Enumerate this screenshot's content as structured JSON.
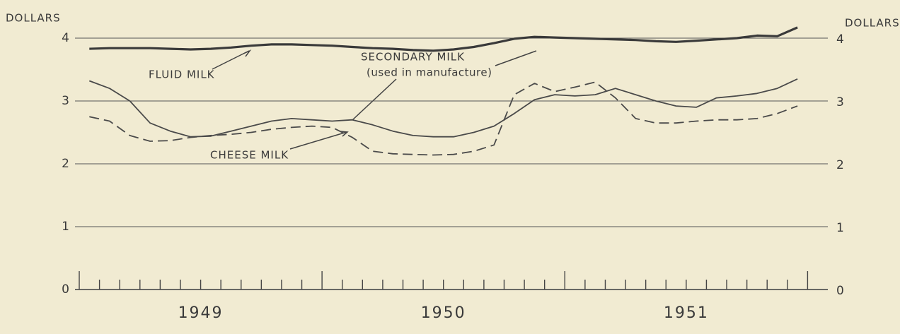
{
  "chart_data": {
    "type": "line",
    "y_label": "DOLLARS",
    "y2_label": "DOLLARS",
    "annotations": [
      "FLUID MILK",
      "SECONDARY MILK",
      "(used in manufacture)",
      "CHEESE MILK"
    ],
    "x": [
      0,
      1,
      2,
      3,
      4,
      5,
      6,
      7,
      8,
      9,
      10,
      11,
      12,
      13,
      14,
      15,
      16,
      17,
      18,
      19,
      20,
      21,
      22,
      23,
      24,
      25,
      26,
      27,
      28,
      29,
      30,
      31,
      32,
      33,
      34,
      35
    ],
    "xlim": [
      -0.5,
      36.5
    ],
    "xticks": [
      {
        "value": 5.5,
        "label": "1949"
      },
      {
        "value": 17.5,
        "label": "1950"
      },
      {
        "value": 29.5,
        "label": "1951"
      }
    ],
    "minor_xticks": [
      -0.5,
      0.5,
      1.5,
      2.5,
      3.5,
      4.5,
      5.5,
      6.5,
      7.5,
      8.5,
      9.5,
      10.5,
      11.5,
      12.5,
      13.5,
      14.5,
      15.5,
      16.5,
      17.5,
      18.5,
      19.5,
      20.5,
      21.5,
      22.5,
      23.5,
      24.5,
      25.5,
      26.5,
      27.5,
      28.5,
      29.5,
      30.5,
      31.5,
      32.5,
      33.5,
      34.5,
      35.5
    ],
    "ylim": [
      0,
      4
    ],
    "yticks": [
      0,
      1,
      2,
      3,
      4
    ],
    "grid": true,
    "series": [
      {
        "name": "FLUID MILK",
        "color": "#3a3a3a",
        "width": 3.2,
        "dash": false,
        "values": [
          3.83,
          3.84,
          3.84,
          3.84,
          3.83,
          3.82,
          3.83,
          3.85,
          3.88,
          3.9,
          3.9,
          3.89,
          3.88,
          3.86,
          3.84,
          3.83,
          3.81,
          3.8,
          3.82,
          3.86,
          3.92,
          3.99,
          4.02,
          4.01,
          4.0,
          3.99,
          3.98,
          3.97,
          3.95,
          3.94,
          3.96,
          3.98,
          4.0,
          4.04,
          4.03,
          4.17
        ]
      },
      {
        "name": "SECONDARY MILK",
        "color": "#4a4a4a",
        "width": 1.8,
        "dash": false,
        "values": [
          3.32,
          3.2,
          3.0,
          2.65,
          2.52,
          2.43,
          2.44,
          2.52,
          2.6,
          2.68,
          2.72,
          2.7,
          2.68,
          2.7,
          2.62,
          2.52,
          2.45,
          2.43,
          2.43,
          2.5,
          2.6,
          2.8,
          3.02,
          3.1,
          3.08,
          3.1,
          3.2,
          3.1,
          3.0,
          2.92,
          2.9,
          3.05,
          3.08,
          3.12,
          3.2,
          3.35
        ]
      },
      {
        "name": "CHEESE MILK",
        "color": "#4a4a4a",
        "width": 1.8,
        "dash": true,
        "values": [
          2.75,
          2.68,
          2.45,
          2.36,
          2.37,
          2.42,
          2.45,
          2.47,
          2.5,
          2.55,
          2.58,
          2.6,
          2.58,
          2.42,
          2.2,
          2.16,
          2.15,
          2.14,
          2.15,
          2.2,
          2.3,
          3.1,
          3.28,
          3.15,
          3.22,
          3.3,
          3.05,
          2.72,
          2.65,
          2.65,
          2.68,
          2.7,
          2.7,
          2.72,
          2.8,
          2.92
        ]
      }
    ]
  }
}
